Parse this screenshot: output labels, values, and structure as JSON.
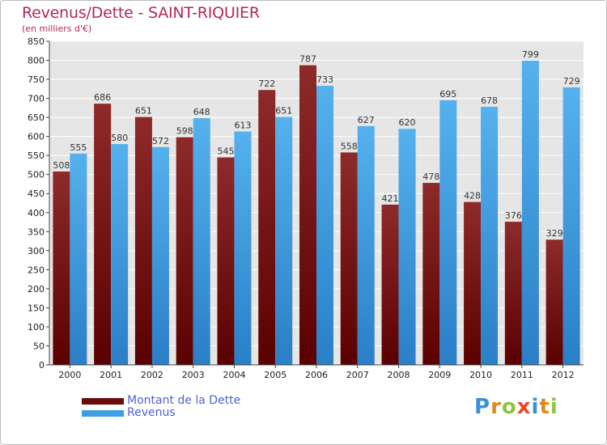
{
  "chart_data": {
    "type": "bar",
    "title": "Revenus/Dette - SAINT-RIQUIER",
    "subtitle": "(en milliers d'€)",
    "categories": [
      "2000",
      "2001",
      "2002",
      "2003",
      "2004",
      "2005",
      "2006",
      "2007",
      "2008",
      "2009",
      "2010",
      "2011",
      "2012"
    ],
    "series": [
      {
        "name": "Montant de la Dette",
        "color": "#7b1414",
        "values": [
          508,
          686,
          651,
          598,
          545,
          722,
          787,
          558,
          421,
          478,
          428,
          376,
          329
        ]
      },
      {
        "name": "Revenus",
        "color": "#3d9ee6",
        "values": [
          555,
          580,
          572,
          648,
          613,
          651,
          733,
          627,
          620,
          695,
          678,
          799,
          729
        ]
      }
    ],
    "ylim": [
      0,
      850
    ],
    "ytick_step": 50,
    "grid": true,
    "legend_position": "bottom-left"
  },
  "logo": {
    "letters": [
      "P",
      "r",
      "o",
      "x",
      "i",
      "t",
      "i"
    ],
    "colors": [
      "#3b8fd8",
      "#e08a1e",
      "#8cc63f",
      "#e54b25",
      "#3b8fd8",
      "#e08a1e",
      "#8cc63f"
    ]
  }
}
